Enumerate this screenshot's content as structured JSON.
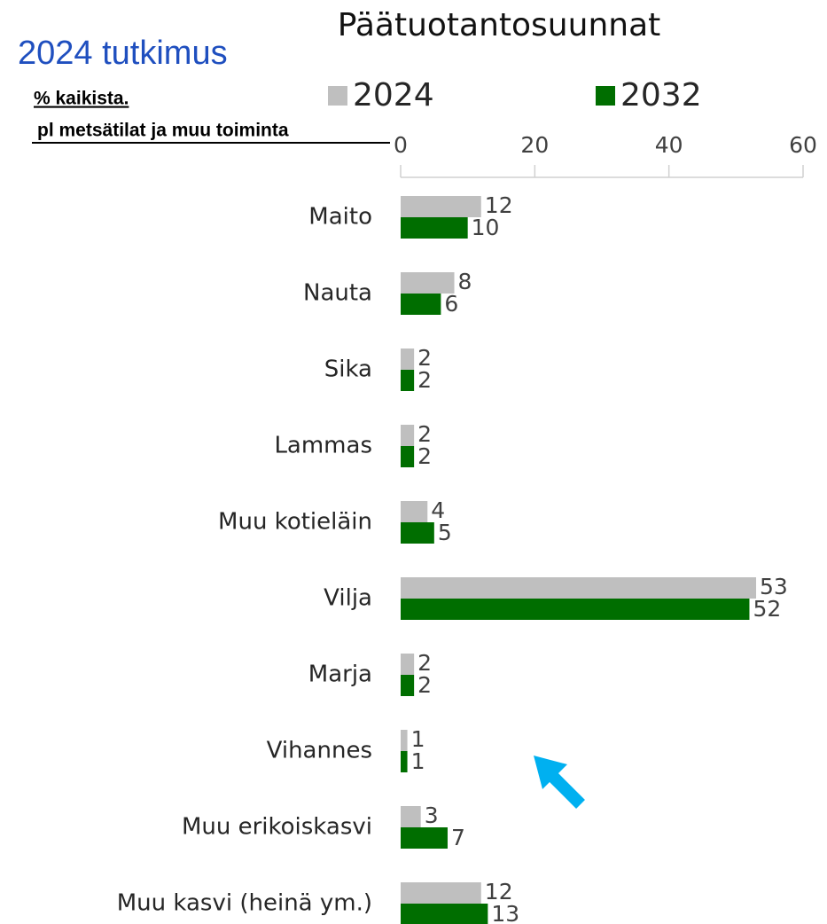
{
  "header": "2024 tutkimus",
  "chart_data": {
    "type": "barh",
    "title": "Päätuotantosuunnat",
    "subtitle_lines": [
      "% kaikista.",
      "pl metsätilat ja muu toiminta"
    ],
    "categories": [
      "Maito",
      "Nauta",
      "Sika",
      "Lammas",
      "Muu kotieläin",
      "Vilja",
      "Marja",
      "Vihannes",
      "Muu erikoiskasvi",
      "Muu kasvi (heinä ym.)"
    ],
    "series": [
      {
        "name": "2024",
        "color": "#bfbfbf",
        "values": [
          12,
          8,
          2,
          2,
          4,
          53,
          2,
          1,
          3,
          12
        ]
      },
      {
        "name": "2032",
        "color": "#006e00",
        "values": [
          10,
          6,
          2,
          2,
          5,
          52,
          2,
          1,
          7,
          13
        ]
      }
    ],
    "xlim": [
      0,
      60
    ],
    "xticks": [
      0,
      20,
      40,
      60
    ],
    "grid": false,
    "legend": "top"
  }
}
